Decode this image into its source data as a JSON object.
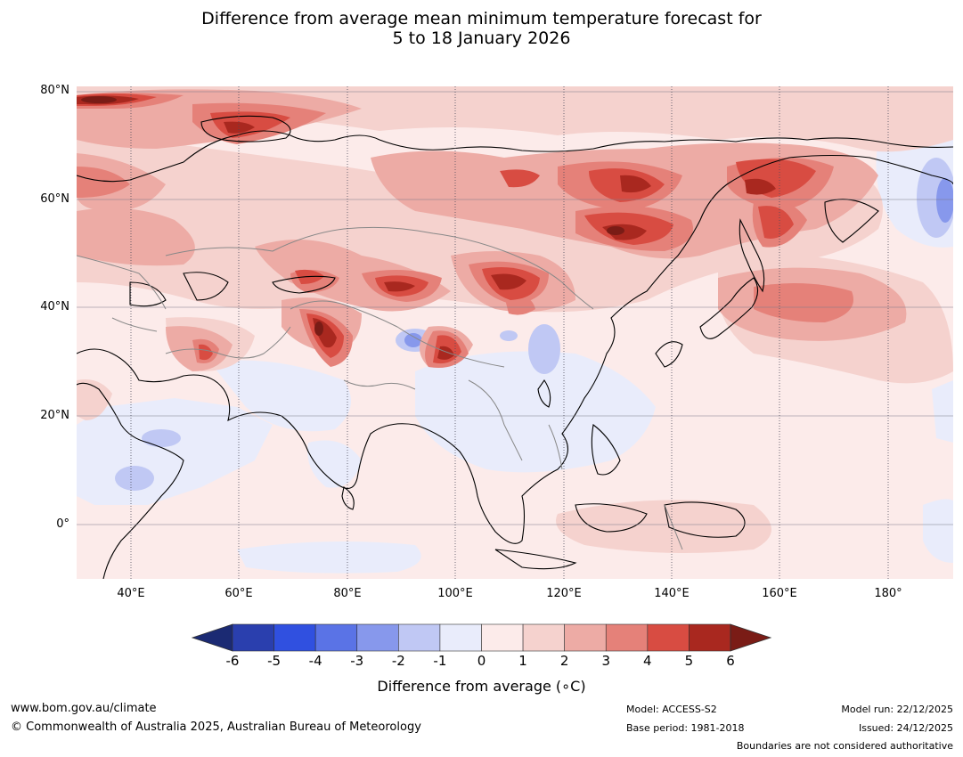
{
  "title_line1": "Difference from average mean minimum temperature forecast for",
  "title_line2": "5 to 18 January 2026",
  "map": {
    "lat_labels": [
      "80°N",
      "60°N",
      "40°N",
      "20°N",
      "0°"
    ],
    "lon_labels": [
      "40°E",
      "60°E",
      "80°E",
      "100°E",
      "120°E",
      "140°E",
      "160°E",
      "180°"
    ],
    "extent": {
      "lon_min": 30,
      "lon_max": 192,
      "lat_min": -10,
      "lat_max": 81
    }
  },
  "colorbar": {
    "ticks": [
      "-6",
      "-5",
      "-4",
      "-3",
      "-2",
      "-1",
      "0",
      "1",
      "2",
      "3",
      "4",
      "5",
      "6"
    ],
    "colors": [
      "#1b2a73",
      "#2a3fae",
      "#3050e0",
      "#5a73e6",
      "#8798ec",
      "#c0c8f4",
      "#e9ecfb",
      "#fcebea",
      "#f5d2ce",
      "#edaba5",
      "#e58179",
      "#d84c42",
      "#a9281f",
      "#7a1c16"
    ],
    "label": "Difference from average (∘C)"
  },
  "footer": {
    "website": "www.bom.gov.au/climate",
    "copyright": "© Commonwealth of Australia 2025, Australian Bureau of Meteorology",
    "model": "Model: ACCESS-S2",
    "base_period": "Base period: 1981-2018",
    "model_run": "Model run: 22/12/2025",
    "issued": "Issued: 24/12/2025",
    "disclaimer": "Boundaries are not considered authoritative"
  }
}
